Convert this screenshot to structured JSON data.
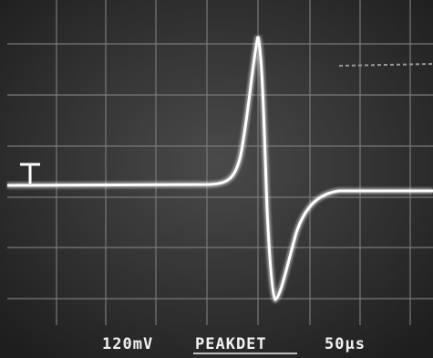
{
  "readout": {
    "volts_per_div": "120mV",
    "mode": "PEAKDET",
    "time_per_div": "50µs"
  }
}
